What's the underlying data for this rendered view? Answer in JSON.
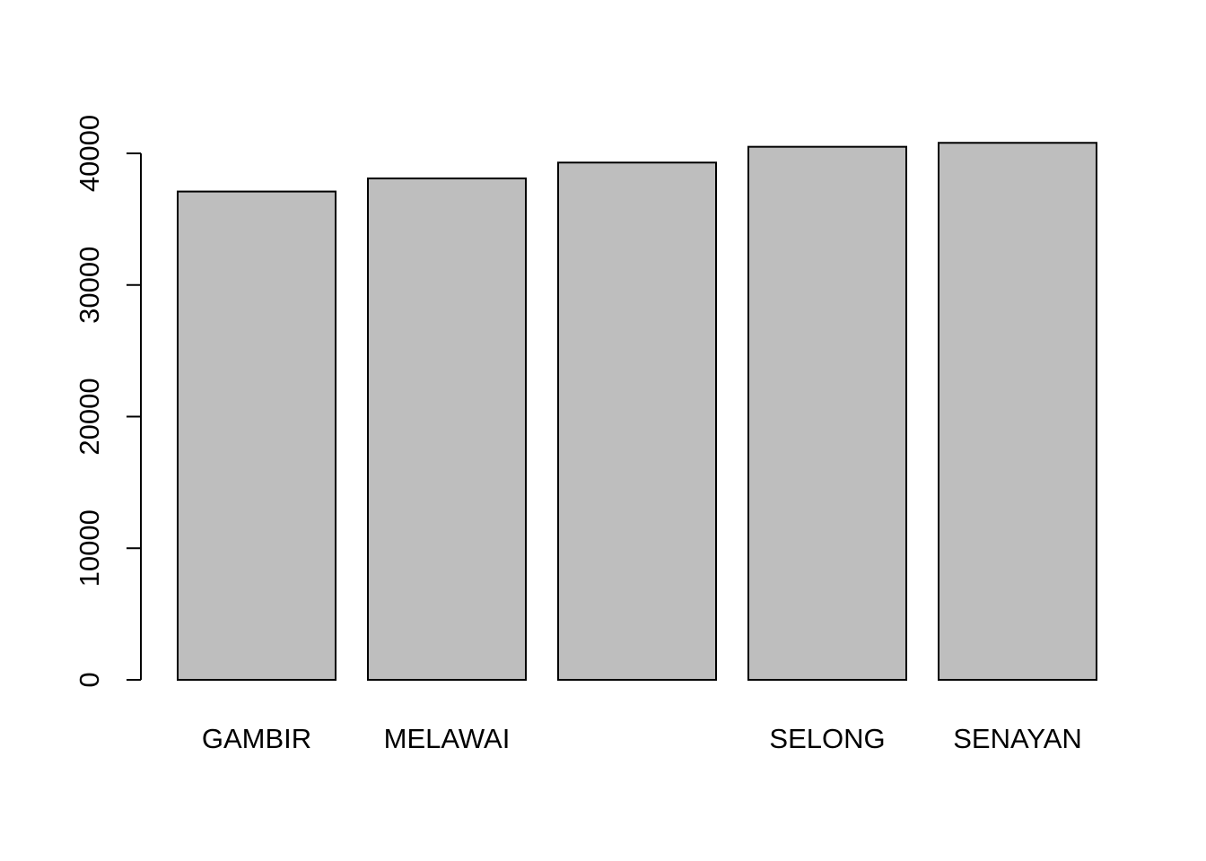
{
  "chart_data": {
    "type": "bar",
    "categories": [
      "GAMBIR",
      "MELAWAI",
      "",
      "SELONG",
      "SENAYAN"
    ],
    "values": [
      37100,
      38100,
      39300,
      40500,
      40800
    ],
    "yticks": [
      0,
      10000,
      20000,
      30000,
      40000
    ],
    "ytick_labels": [
      "0",
      "10000",
      "20000",
      "30000",
      "40000"
    ],
    "ylim": [
      0,
      40800
    ],
    "title": "",
    "xlabel": "",
    "ylabel": "",
    "grid": false,
    "colors": {
      "bar_fill": "#bebebe",
      "bar_stroke": "#000000"
    }
  }
}
